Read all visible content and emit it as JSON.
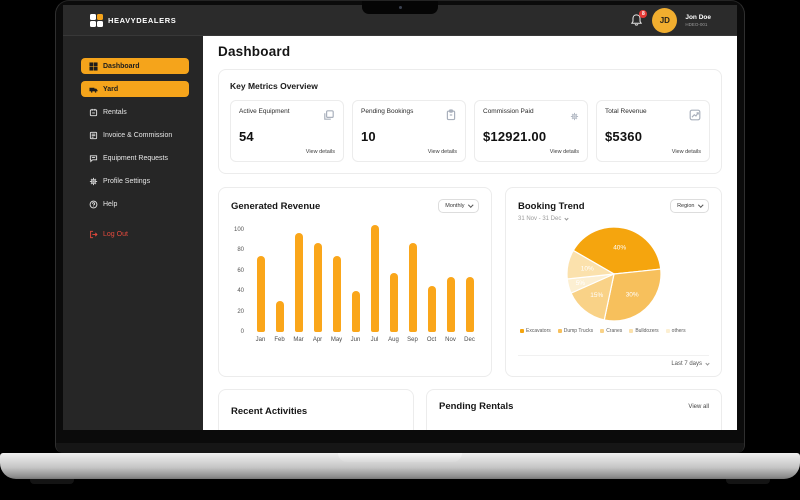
{
  "header": {
    "brand": "HEAVYDEALERS",
    "notification_badge": "8",
    "user": {
      "initials": "JD",
      "name": "Jon Doe",
      "id": "HDEO-001"
    }
  },
  "sidebar": {
    "items": [
      {
        "label": "Dashboard",
        "icon": "grid-icon",
        "active": true
      },
      {
        "label": "Yard",
        "icon": "truck-icon",
        "active": true
      },
      {
        "label": "Rentals",
        "icon": "calendar-icon",
        "active": false
      },
      {
        "label": "Invoice & Commission",
        "icon": "invoice-icon",
        "active": false
      },
      {
        "label": "Equipment Requests",
        "icon": "chat-icon",
        "active": false
      },
      {
        "label": "Profile Settings",
        "icon": "gear-icon",
        "active": false
      },
      {
        "label": "Help",
        "icon": "help-icon",
        "active": false
      }
    ],
    "logout_label": "Log Out"
  },
  "page": {
    "title": "Dashboard"
  },
  "metrics": {
    "section_title": "Key Metrics Overview",
    "view_details_label": "View details",
    "cards": [
      {
        "label": "Active Equipment",
        "value": "54",
        "icon": "equipment-icon"
      },
      {
        "label": "Pending Bookings",
        "value": "10",
        "icon": "clipboard-icon"
      },
      {
        "label": "Commission Paid",
        "value": "$12921.00",
        "icon": "gear-icon"
      },
      {
        "label": "Total  Revenue",
        "value": "$5360",
        "icon": "trend-icon"
      }
    ]
  },
  "revenue_card": {
    "title": "Generated Revenue",
    "filter_label": "Monthly"
  },
  "booking_card": {
    "title": "Booking Trend",
    "subtitle": "31 Nov - 31 Dec",
    "filter_label": "Region",
    "footer_label": "Last 7 days"
  },
  "bottom": {
    "recent_title": "Recent Activities",
    "pending_title": "Pending Rentals",
    "view_all_label": "View all"
  },
  "colors": {
    "accent": "#F5A41B",
    "bar": "#FAA61A",
    "logout_red": "#E64A3D",
    "badge_red": "#E53935",
    "sidebar_bg": "#262626",
    "appbar_bg": "#2B2B2B"
  },
  "chart_data": [
    {
      "type": "bar",
      "title": "Generated Revenue",
      "categories": [
        "Jan",
        "Feb",
        "Mar",
        "Apr",
        "May",
        "Jun",
        "Jul",
        "Aug",
        "Sep",
        "Oct",
        "Nov",
        "Dec"
      ],
      "values": [
        75,
        30,
        97,
        87,
        75,
        40,
        105,
        58,
        87,
        45,
        54,
        54
      ],
      "xlabel": "",
      "ylabel": "",
      "ylim": [
        0,
        100
      ],
      "yticks": [
        0,
        20,
        40,
        60,
        80,
        100
      ],
      "grid": false,
      "bar_color": "#FAA61A"
    },
    {
      "type": "pie",
      "title": "Booking Trend",
      "start_angle": 300,
      "slices": [
        {
          "label": "Excavators",
          "value": 40,
          "color": "#F5A50E"
        },
        {
          "label": "Dump Trucks",
          "value": 30,
          "color": "#F7C05C"
        },
        {
          "label": "Cranes",
          "value": 15,
          "color": "#F9D287"
        },
        {
          "label": "others",
          "value": 5,
          "color": "#FCEFD2"
        },
        {
          "label": "Bulldozers",
          "value": 10,
          "color": "#FBE1AC"
        }
      ],
      "legend": [
        {
          "label": "Excavators",
          "color": "#F5A50E"
        },
        {
          "label": "Dump Trucks",
          "color": "#F7C05C"
        },
        {
          "label": "Cranes",
          "color": "#F9D287"
        },
        {
          "label": "Bulldozers",
          "color": "#FBE1AC"
        },
        {
          "label": "others",
          "color": "#FCEFD2"
        }
      ],
      "legend_position": "bottom"
    }
  ]
}
